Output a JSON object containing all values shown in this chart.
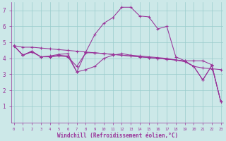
{
  "xlabel": "Windchill (Refroidissement éolien,°C)",
  "bg_color": "#cce8e8",
  "line_color": "#993399",
  "grid_color": "#99cccc",
  "series": [
    [
      4.8,
      4.7,
      4.7,
      4.65,
      4.6,
      4.55,
      4.5,
      4.45,
      4.4,
      4.35,
      4.3,
      4.25,
      4.2,
      4.15,
      4.1,
      4.05,
      4.0,
      3.95,
      3.9,
      3.85,
      3.5,
      3.4,
      3.35,
      3.3
    ],
    [
      4.8,
      4.2,
      4.4,
      4.1,
      4.1,
      4.15,
      4.1,
      3.5,
      4.35,
      4.35,
      4.3,
      4.25,
      4.2,
      4.15,
      4.1,
      4.05,
      4.0,
      3.95,
      3.9,
      3.8,
      3.5,
      2.65,
      3.55,
      1.3
    ],
    [
      4.8,
      4.2,
      4.45,
      4.1,
      4.1,
      4.2,
      4.15,
      3.15,
      3.3,
      3.5,
      4.0,
      4.2,
      4.3,
      4.2,
      4.15,
      4.1,
      4.05,
      4.0,
      3.9,
      3.8,
      3.5,
      2.65,
      3.55,
      1.3
    ],
    [
      4.8,
      4.2,
      4.45,
      4.1,
      4.15,
      4.25,
      4.3,
      3.15,
      4.4,
      5.5,
      6.2,
      6.55,
      7.2,
      7.2,
      6.65,
      6.6,
      5.85,
      6.0,
      4.1,
      3.85,
      3.85,
      3.85,
      3.6,
      1.3
    ]
  ],
  "x_start": 0,
  "x_end": 23,
  "y_min": 0,
  "y_max": 7.5,
  "y_ticks": [
    1,
    2,
    3,
    4,
    5,
    6,
    7
  ],
  "x_ticks": [
    0,
    1,
    2,
    3,
    4,
    5,
    6,
    7,
    8,
    9,
    10,
    11,
    12,
    13,
    14,
    15,
    16,
    17,
    18,
    19,
    20,
    21,
    22,
    23
  ]
}
